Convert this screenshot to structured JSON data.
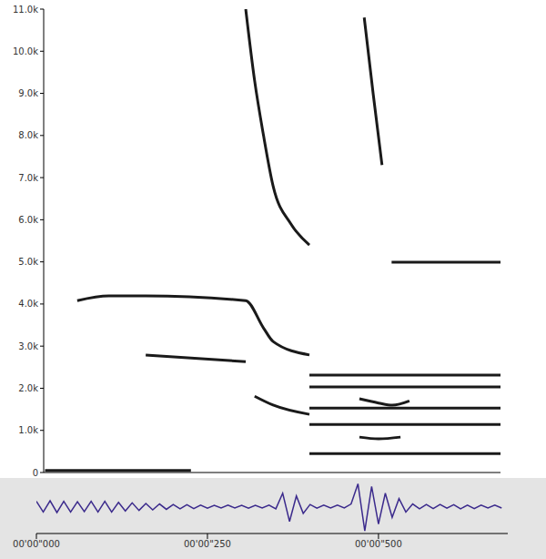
{
  "chart_data": [
    {
      "type": "line",
      "color": "#1a1a1a",
      "tick_labels": "y",
      "grid": false,
      "xlim": [
        11,
        678
      ],
      "ylim": [
        0,
        11000
      ],
      "yticks": [
        0,
        {
          "value": 1000,
          "label": "1.0k"
        },
        {
          "value": 2000,
          "label": "2.0k"
        },
        {
          "value": 3000,
          "label": "3.0k"
        },
        {
          "value": 4000,
          "label": "4.0k"
        },
        {
          "value": 5000,
          "label": "5.0k"
        },
        {
          "value": 6000,
          "label": "6.0k"
        },
        {
          "value": 7000,
          "label": "7.0k"
        },
        {
          "value": 8000,
          "label": "8.0k"
        },
        {
          "value": 9000,
          "label": "9.0k"
        },
        {
          "value": 10000,
          "label": "10.0k"
        },
        {
          "value": 11000,
          "label": "11.0k"
        }
      ],
      "series": [
        {
          "x": [
            13,
            120,
            226
          ],
          "values": [
            50,
            50,
            50
          ]
        },
        {
          "x": [
            60,
            106,
            160,
            306,
            332,
            346,
            399
          ],
          "values": [
            4080,
            4190,
            4190,
            4080,
            3430,
            3110,
            2790
          ]
        },
        {
          "x": [
            160,
            306
          ],
          "values": [
            2790,
            2630
          ]
        },
        {
          "x": [
            319,
            346,
            399
          ],
          "values": [
            1810,
            1600,
            1380
          ]
        },
        {
          "x": [
            306,
            319,
            332,
            346,
            372,
            399
          ],
          "values": [
            11000,
            9300,
            8000,
            6800,
            5900,
            5400
          ]
        },
        {
          "x": [
            479,
            492,
            505
          ],
          "values": [
            10800,
            9000,
            7300
          ]
        },
        {
          "x": [
            472,
            500,
            520,
            545
          ],
          "values": [
            1750,
            1650,
            1600,
            1700
          ]
        },
        {
          "x": [
            472,
            500,
            532
          ],
          "values": [
            840,
            800,
            840
          ]
        },
        {
          "x": [
            399,
            678
          ],
          "values": [
            2310,
            2310
          ]
        },
        {
          "x": [
            399,
            678
          ],
          "values": [
            2030,
            2030
          ]
        },
        {
          "x": [
            399,
            678
          ],
          "values": [
            1530,
            1530
          ]
        },
        {
          "x": [
            399,
            678
          ],
          "values": [
            1140,
            1140
          ]
        },
        {
          "x": [
            399,
            678
          ],
          "values": [
            450,
            450
          ]
        },
        {
          "x": [
            519,
            678
          ],
          "values": [
            4990,
            4990
          ]
        }
      ]
    },
    {
      "type": "line",
      "color": "#3b2a8c",
      "tick_labels": "x",
      "grid": false,
      "xlim": [
        0,
        689
      ],
      "ylim": [
        -1,
        1
      ],
      "xticks": [
        {
          "value": 0,
          "label": "00'00\"000"
        },
        {
          "value": 250,
          "label": "00'00\"250"
        },
        {
          "value": 500,
          "label": "00'00\"500"
        }
      ],
      "x": [
        0,
        10,
        20,
        30,
        40,
        50,
        60,
        70,
        80,
        90,
        100,
        110,
        120,
        130,
        140,
        150,
        160,
        170,
        180,
        190,
        200,
        210,
        220,
        230,
        240,
        250,
        260,
        270,
        280,
        290,
        300,
        310,
        320,
        330,
        340,
        350,
        360,
        370,
        380,
        390,
        400,
        410,
        420,
        430,
        440,
        450,
        460,
        470,
        480,
        490,
        500,
        510,
        520,
        530,
        540,
        550,
        560,
        570,
        580,
        590,
        600,
        610,
        620,
        630,
        640,
        650,
        660,
        670,
        680
      ],
      "values": [
        0.2,
        -0.2,
        0.22,
        -0.22,
        0.2,
        -0.2,
        0.18,
        -0.18,
        0.2,
        -0.2,
        0.2,
        -0.2,
        0.16,
        -0.16,
        0.14,
        -0.14,
        0.12,
        -0.12,
        0.1,
        -0.1,
        0.08,
        -0.08,
        0.07,
        -0.07,
        0.06,
        -0.06,
        0.05,
        -0.05,
        0.06,
        -0.05,
        0.05,
        -0.06,
        0.05,
        -0.05,
        0.06,
        -0.08,
        0.5,
        -0.55,
        0.4,
        -0.25,
        0.08,
        -0.06,
        0.06,
        -0.05,
        0.06,
        -0.05,
        0.1,
        0.85,
        -0.9,
        0.75,
        -0.65,
        0.5,
        -0.4,
        0.3,
        -0.2,
        0.1,
        -0.08,
        0.08,
        -0.07,
        0.08,
        -0.06,
        0.07,
        -0.08,
        0.06,
        -0.07,
        0.06,
        -0.05,
        0.06,
        -0.05
      ]
    }
  ]
}
